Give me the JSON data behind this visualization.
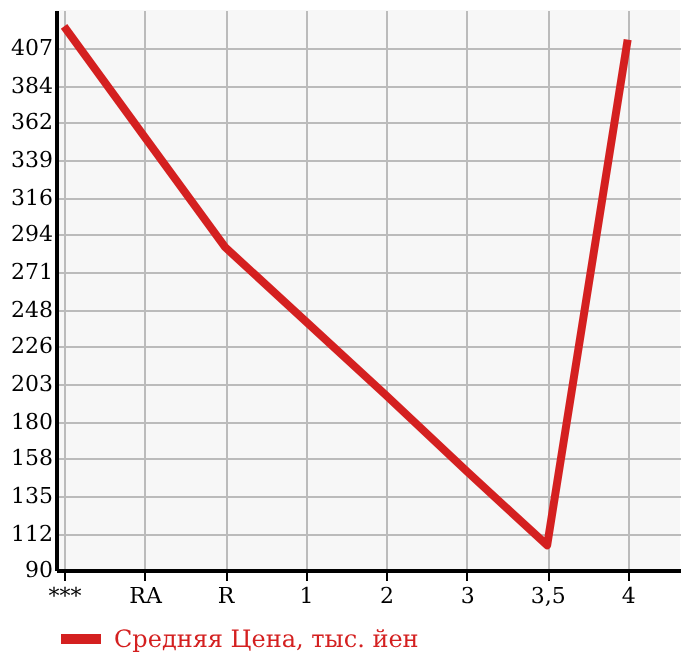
{
  "chart_data": {
    "type": "line",
    "categories": [
      "***",
      "RA",
      "R",
      "1",
      "2",
      "3",
      "3,5",
      "4"
    ],
    "series": [
      {
        "name": "Средняя Цена, тыс. йен",
        "color": "#d42020",
        "values": [
          420,
          353,
          286,
          241,
          196,
          150,
          105,
          412
        ]
      }
    ],
    "ylim": [
      90,
      430
    ],
    "yticks": [
      90,
      112,
      135,
      158,
      180,
      203,
      226,
      248,
      271,
      294,
      316,
      339,
      362,
      384,
      407
    ],
    "grid": true,
    "legend": "bottom",
    "marker": "none",
    "line_style": "solid"
  }
}
